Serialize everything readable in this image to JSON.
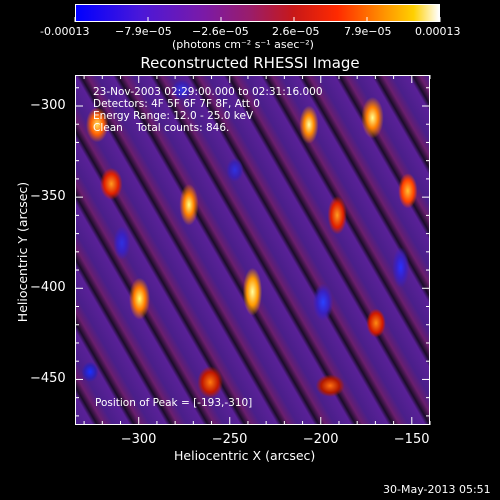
{
  "colorbar": {
    "tick_labels": [
      "-0.00013",
      "−7.9e−05",
      "−2.6e−05",
      "2.6e−05",
      "7.9e−05",
      "0.00013"
    ],
    "units_label": "(photons cm⁻² s⁻¹ asec⁻²)",
    "colors": [
      "#0000ff",
      "#7a1aa8",
      "#c81818",
      "#ff8c00",
      "#ffd000",
      "#ffffff"
    ]
  },
  "plot": {
    "title": "Reconstructed RHESSI Image",
    "info_lines": [
      "23-Nov-2003 02:29:00.000 to 02:31:16.000",
      "Detectors: 4F 5F 6F 7F 8F, Att 0",
      "Energy Range: 12.0 - 25.0 keV",
      "Clean    Total counts: 846."
    ],
    "peak_label": "Position of Peak = [-193,-310]",
    "x_axis_label": "Heliocentric X (arcsec)",
    "y_axis_label": "Heliocentric Y (arcsec)",
    "x_ticks": [
      "−300",
      "−250",
      "−200",
      "−150"
    ],
    "y_ticks": [
      "−300",
      "−350",
      "−400",
      "−450"
    ],
    "x_range": [
      -335,
      -140
    ],
    "y_range": [
      -475,
      -283
    ],
    "x_tick_values": [
      -300,
      -250,
      -200,
      -150
    ],
    "y_tick_values": [
      -300,
      -350,
      -400,
      -450
    ]
  },
  "footer": {
    "timestamp": "30-May-2013 05:51"
  }
}
